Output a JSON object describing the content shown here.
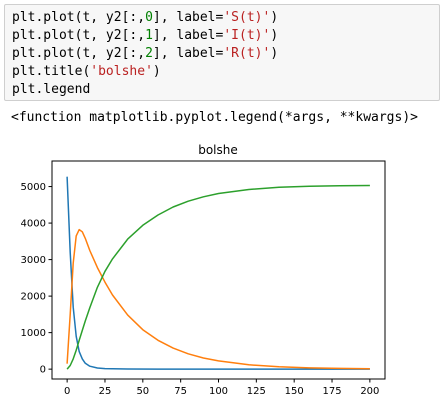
{
  "code_cell": {
    "lines": [
      {
        "tokens": [
          {
            "t": "plt.plot(t, y2[:,",
            "k": "plain"
          },
          {
            "t": "0",
            "k": "num"
          },
          {
            "t": "], label=",
            "k": "plain"
          },
          {
            "t": "'S(t)'",
            "k": "str"
          },
          {
            "t": ")",
            "k": "plain"
          }
        ]
      },
      {
        "tokens": [
          {
            "t": "plt.plot(t, y2[:,",
            "k": "plain"
          },
          {
            "t": "1",
            "k": "num"
          },
          {
            "t": "], label=",
            "k": "plain"
          },
          {
            "t": "'I(t)'",
            "k": "str"
          },
          {
            "t": ")",
            "k": "plain"
          }
        ]
      },
      {
        "tokens": [
          {
            "t": "plt.plot(t, y2[:,",
            "k": "plain"
          },
          {
            "t": "2",
            "k": "num"
          },
          {
            "t": "], label=",
            "k": "plain"
          },
          {
            "t": "'R(t)'",
            "k": "str"
          },
          {
            "t": ")",
            "k": "plain"
          }
        ]
      },
      {
        "tokens": [
          {
            "t": "plt.title(",
            "k": "plain"
          },
          {
            "t": "'bolshe'",
            "k": "str"
          },
          {
            "t": ")",
            "k": "plain"
          }
        ]
      },
      {
        "tokens": [
          {
            "t": "plt.legend",
            "k": "plain"
          }
        ]
      }
    ]
  },
  "output": {
    "text": "<function matplotlib.pyplot.legend(*args, **kwargs)>"
  },
  "colors": {
    "code_bg": "#f7f7f7",
    "string": "#ba2121",
    "number": "#008000",
    "series_S": "#1f77b4",
    "series_I": "#ff7f0e",
    "series_R": "#2ca02c"
  },
  "chart_data": {
    "type": "line",
    "title": "bolshe",
    "xlabel": "",
    "ylabel": "",
    "xlim": [
      -10,
      210
    ],
    "ylim": [
      -270,
      5700
    ],
    "xticks": [
      0,
      25,
      50,
      75,
      100,
      125,
      150,
      175,
      200
    ],
    "yticks": [
      0,
      1000,
      2000,
      3000,
      4000,
      5000
    ],
    "grid": false,
    "legend": "none",
    "series": [
      {
        "key": "S",
        "color": "#1f77b4",
        "x": [
          0,
          2,
          4,
          6,
          8,
          10,
          12,
          15,
          20,
          25,
          30,
          40,
          60,
          100,
          150,
          200
        ],
        "y": [
          5270,
          3200,
          1700,
          900,
          480,
          280,
          160,
          80,
          30,
          15,
          8,
          4,
          2,
          1,
          1,
          1
        ]
      },
      {
        "key": "I",
        "color": "#ff7f0e",
        "x": [
          0,
          2,
          4,
          6,
          8,
          10,
          12,
          15,
          20,
          25,
          30,
          40,
          50,
          60,
          70,
          80,
          90,
          100,
          120,
          140,
          160,
          180,
          200
        ],
        "y": [
          150,
          1500,
          2900,
          3650,
          3820,
          3760,
          3580,
          3250,
          2780,
          2380,
          2030,
          1480,
          1080,
          790,
          575,
          420,
          305,
          225,
          120,
          65,
          35,
          20,
          12
        ]
      },
      {
        "key": "R",
        "color": "#2ca02c",
        "x": [
          0,
          2,
          4,
          6,
          8,
          10,
          12,
          15,
          20,
          25,
          30,
          40,
          50,
          60,
          70,
          80,
          90,
          100,
          120,
          140,
          160,
          180,
          200
        ],
        "y": [
          0,
          100,
          280,
          520,
          790,
          1060,
          1320,
          1680,
          2240,
          2680,
          3020,
          3560,
          3940,
          4220,
          4440,
          4600,
          4720,
          4810,
          4920,
          4980,
          5010,
          5020,
          5030
        ]
      }
    ]
  }
}
